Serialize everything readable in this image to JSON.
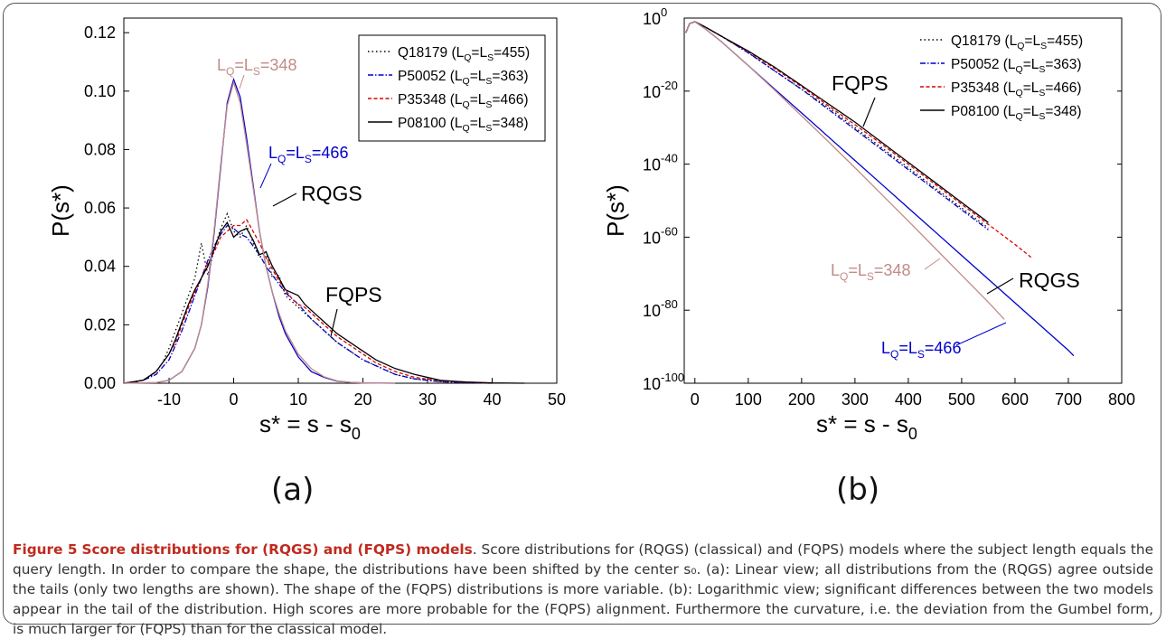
{
  "panels": [
    {
      "label": "(a)"
    },
    {
      "label": "(b)"
    }
  ],
  "caption": {
    "figure_label": "Figure 5",
    "title": "Score distributions for (RQGS) and (FQPS) models",
    "body": ". Score distributions for (RQGS) (classical) and (FQPS) models where the subject length equals the query length. In order to compare the shape, the distributions have been shifted by the center s₀. (a): Linear view; all distributions from the (RQGS) agree outside the tails (only two lengths are shown). The shape of the (FQPS) distributions is more variable. (b): Logarithmic view; significant differences between the two models appear in the tail of the distribution. High scores are more probable for the (FQPS) alignment. Furthermore the curvature, i.e. the deviation from the Gumbel form, is much larger for (FQPS) than for the classical model."
  },
  "chart_data": [
    {
      "type": "line",
      "xlabel": "s* = s - s",
      "xlabel_sub": "0",
      "ylabel": "P(s*)",
      "xlim": [
        -17,
        50
      ],
      "ylim": [
        0,
        0.125
      ],
      "xticks": [
        -10,
        0,
        10,
        20,
        30,
        40,
        50
      ],
      "xtick_labels": [
        "-10",
        "0",
        "10",
        "20",
        "30",
        "40",
        "50"
      ],
      "yticks": [
        0,
        0.02,
        0.04,
        0.06,
        0.08,
        0.1,
        0.12
      ],
      "ytick_labels": [
        "0.00",
        "0.02",
        "0.04",
        "0.06",
        "0.08",
        "0.10",
        "0.12"
      ],
      "legend_position": "top-right",
      "legend": [
        {
          "id": "Q18179",
          "L": "455",
          "color": "#000000",
          "dash": "1.5 3"
        },
        {
          "id": "P50052",
          "L": "363",
          "color": "#0000cc",
          "dash": "6 2 1.5 2"
        },
        {
          "id": "P35348",
          "L": "466",
          "color": "#dd0000",
          "dash": "4 2.5"
        },
        {
          "id": "P08100",
          "L": "348",
          "color": "#000000",
          "dash": ""
        }
      ],
      "series": [
        {
          "color": "#000000",
          "dash": "1.5 3",
          "x": [
            -17,
            -15,
            -13,
            -12,
            -11,
            -10,
            -9,
            -8,
            -7,
            -6,
            -5,
            -4,
            -3,
            -2,
            -1,
            0,
            1,
            2,
            3,
            4,
            5,
            6,
            7,
            8,
            9,
            10,
            12,
            14,
            16,
            18,
            20,
            22,
            25,
            28,
            32,
            36,
            40
          ],
          "y": [
            0,
            0.0005,
            0.002,
            0.004,
            0.007,
            0.012,
            0.018,
            0.024,
            0.03,
            0.036,
            0.048,
            0.037,
            0.046,
            0.053,
            0.058,
            0.052,
            0.05,
            0.054,
            0.048,
            0.043,
            0.045,
            0.036,
            0.037,
            0.03,
            0.028,
            0.026,
            0.022,
            0.018,
            0.014,
            0.011,
            0.008,
            0.006,
            0.003,
            0.0015,
            0.0005,
            0.0002,
            0
          ]
        },
        {
          "color": "#0000cc",
          "dash": "6 2 1.5 2",
          "x": [
            -17,
            -14,
            -12,
            -10,
            -9,
            -8,
            -7,
            -6,
            -5,
            -4,
            -3,
            -2,
            -1,
            0,
            1,
            2,
            3,
            4,
            5,
            6,
            7,
            8,
            9,
            10,
            12,
            14,
            16,
            18,
            20,
            22,
            25,
            28,
            32,
            36,
            40
          ],
          "y": [
            0,
            0.001,
            0.003,
            0.008,
            0.013,
            0.018,
            0.024,
            0.03,
            0.036,
            0.042,
            0.047,
            0.051,
            0.054,
            0.053,
            0.051,
            0.05,
            0.047,
            0.044,
            0.04,
            0.037,
            0.034,
            0.031,
            0.029,
            0.027,
            0.022,
            0.018,
            0.014,
            0.011,
            0.008,
            0.006,
            0.003,
            0.0015,
            0.0005,
            0.0002,
            0
          ]
        },
        {
          "color": "#dd0000",
          "dash": "4 2.5",
          "x": [
            -17,
            -14,
            -12,
            -10,
            -9,
            -8,
            -7,
            -6,
            -5,
            -4,
            -3,
            -2,
            -1,
            0,
            1,
            2,
            3,
            4,
            5,
            6,
            7,
            8,
            9,
            10,
            11,
            12,
            14,
            16,
            18,
            20,
            22,
            25,
            28,
            32,
            36,
            40
          ],
          "y": [
            0,
            0.001,
            0.004,
            0.01,
            0.014,
            0.02,
            0.026,
            0.031,
            0.036,
            0.041,
            0.045,
            0.05,
            0.052,
            0.054,
            0.054,
            0.056,
            0.052,
            0.048,
            0.043,
            0.039,
            0.035,
            0.032,
            0.029,
            0.027,
            0.026,
            0.024,
            0.02,
            0.016,
            0.013,
            0.01,
            0.007,
            0.004,
            0.002,
            0.0008,
            0.0003,
            0
          ]
        },
        {
          "color": "#000000",
          "dash": "",
          "x": [
            -17,
            -14,
            -12,
            -10,
            -9,
            -8,
            -7,
            -6,
            -5,
            -4,
            -3,
            -2,
            -1,
            0,
            1,
            2,
            3,
            4,
            5,
            6,
            7,
            8,
            9,
            10,
            11,
            12,
            14,
            16,
            18,
            20,
            22,
            25,
            28,
            32,
            36,
            40,
            45
          ],
          "y": [
            0,
            0.001,
            0.004,
            0.01,
            0.015,
            0.021,
            0.027,
            0.032,
            0.036,
            0.04,
            0.046,
            0.052,
            0.055,
            0.05,
            0.052,
            0.053,
            0.049,
            0.044,
            0.045,
            0.04,
            0.036,
            0.032,
            0.031,
            0.03,
            0.027,
            0.025,
            0.021,
            0.017,
            0.014,
            0.011,
            0.008,
            0.005,
            0.003,
            0.001,
            0.0004,
            0.0001,
            0
          ]
        },
        {
          "color": "#0000cc",
          "dash": "",
          "x": [
            -17,
            -12,
            -10,
            -8,
            -6,
            -5,
            -4,
            -3,
            -2,
            -1,
            0,
            1,
            2,
            3,
            4,
            5,
            6,
            7,
            8,
            10,
            12,
            14,
            16,
            18,
            20,
            25
          ],
          "y": [
            0,
            0.0002,
            0.001,
            0.004,
            0.012,
            0.02,
            0.033,
            0.052,
            0.074,
            0.096,
            0.104,
            0.098,
            0.084,
            0.068,
            0.052,
            0.04,
            0.031,
            0.023,
            0.017,
            0.009,
            0.004,
            0.002,
            0.0007,
            0.0003,
            0.0001,
            0
          ]
        },
        {
          "color": "#c28b86",
          "dash": "",
          "x": [
            -17,
            -12,
            -10,
            -8,
            -6,
            -5,
            -4,
            -3,
            -2,
            -1,
            0,
            1,
            2,
            3,
            4,
            5,
            6,
            7,
            8,
            10,
            12,
            14,
            16,
            18,
            20,
            25
          ],
          "y": [
            0,
            0.0002,
            0.001,
            0.004,
            0.012,
            0.02,
            0.034,
            0.053,
            0.075,
            0.095,
            0.103,
            0.096,
            0.082,
            0.067,
            0.052,
            0.04,
            0.031,
            0.024,
            0.018,
            0.01,
            0.005,
            0.0022,
            0.0008,
            0.0003,
            0.0001,
            0
          ]
        }
      ],
      "annotations": [
        {
          "text": "L",
          "sub1": "Q",
          "mid": "=L",
          "sub2": "S",
          "end": "=348",
          "color": "#c28b86"
        },
        {
          "text": "L",
          "sub1": "Q",
          "mid": "=L",
          "sub2": "S",
          "end": "=466",
          "color": "#0000cc"
        },
        {
          "text": "RQGS",
          "color": "#000000"
        },
        {
          "text": "FQPS",
          "color": "#000000"
        }
      ]
    },
    {
      "type": "line",
      "xlabel": "s* = s - s",
      "xlabel_sub": "0",
      "ylabel": "P(s*)",
      "y_scale": "log",
      "xlim": [
        -20,
        800
      ],
      "ylim_exp": [
        -100,
        0
      ],
      "xticks": [
        0,
        100,
        200,
        300,
        400,
        500,
        600,
        700,
        800
      ],
      "xtick_labels": [
        "0",
        "100",
        "200",
        "300",
        "400",
        "500",
        "600",
        "700",
        "800"
      ],
      "yticks_exp": [
        0,
        -20,
        -40,
        -60,
        -80,
        -100
      ],
      "ytick_labels": [
        "10",
        "10",
        "10",
        "10",
        "10",
        "10"
      ],
      "ytick_exponents": [
        "0",
        "-20",
        "-40",
        "-60",
        "-80",
        "-100"
      ],
      "legend_position": "top-right",
      "legend": [
        {
          "id": "Q18179",
          "L": "455",
          "color": "#000000",
          "dash": "1.5 3"
        },
        {
          "id": "P50052",
          "L": "363",
          "color": "#0000cc",
          "dash": "6 2 1.5 2"
        },
        {
          "id": "P35348",
          "L": "466",
          "color": "#dd0000",
          "dash": "4 2.5"
        },
        {
          "id": "P08100",
          "L": "348",
          "color": "#000000",
          "dash": ""
        }
      ],
      "series": [
        {
          "color": "#000000",
          "dash": "1.5 3",
          "x": [
            -17,
            -10,
            0,
            20,
            50,
            100,
            150,
            200,
            250,
            300,
            350,
            400,
            450,
            500,
            550
          ],
          "y": [
            -4,
            -1.5,
            -1,
            -2.5,
            -5,
            -9.5,
            -14.5,
            -19.5,
            -24.5,
            -30,
            -35.5,
            -41,
            -46.5,
            -52,
            -57.5
          ]
        },
        {
          "color": "#0000cc",
          "dash": "6 2 1.5 2",
          "x": [
            -17,
            -10,
            0,
            20,
            50,
            100,
            150,
            200,
            250,
            300,
            350,
            400,
            450,
            500,
            550
          ],
          "y": [
            -4,
            -1.5,
            -1,
            -2.5,
            -5,
            -9.5,
            -14.5,
            -19.5,
            -25,
            -30.5,
            -36,
            -41.5,
            -47,
            -52.5,
            -58
          ]
        },
        {
          "color": "#dd0000",
          "dash": "4 2.5",
          "x": [
            -17,
            -10,
            0,
            20,
            50,
            100,
            150,
            200,
            250,
            300,
            350,
            400,
            450,
            500,
            550,
            600,
            630
          ],
          "y": [
            -4,
            -1.5,
            -1,
            -2.5,
            -5,
            -9.2,
            -13.8,
            -18.8,
            -24,
            -29.2,
            -34.5,
            -40,
            -45.5,
            -51,
            -56.5,
            -62,
            -65.5
          ]
        },
        {
          "color": "#000000",
          "dash": "",
          "x": [
            -17,
            -10,
            0,
            20,
            50,
            100,
            150,
            200,
            250,
            300,
            350,
            400,
            450,
            500,
            550
          ],
          "y": [
            -4,
            -1.5,
            -1,
            -2.5,
            -5,
            -9,
            -13.5,
            -18.5,
            -23.5,
            -28.5,
            -34,
            -39.5,
            -45,
            -50.5,
            -56
          ]
        },
        {
          "color": "#0000cc",
          "dash": "",
          "x": [
            -17,
            -10,
            0,
            20,
            50,
            100,
            150,
            200,
            250,
            300,
            350,
            400,
            450,
            500,
            550,
            600,
            650,
            700,
            710
          ],
          "y": [
            -4,
            -1.5,
            -1,
            -3,
            -6.5,
            -13,
            -19.5,
            -26,
            -32.5,
            -39,
            -45.5,
            -52,
            -58.5,
            -65,
            -71.5,
            -78,
            -84.5,
            -91,
            -92.5
          ]
        },
        {
          "color": "#c28b86",
          "dash": "",
          "x": [
            -17,
            -10,
            0,
            20,
            50,
            100,
            150,
            200,
            250,
            300,
            350,
            400,
            450,
            500,
            550,
            580
          ],
          "y": [
            -4,
            -1.5,
            -1,
            -3,
            -6.5,
            -13,
            -19.8,
            -26.8,
            -33.8,
            -41,
            -48.3,
            -55.6,
            -63,
            -70.4,
            -77.8,
            -82.5
          ]
        }
      ],
      "annotations": [
        {
          "text": "FQPS",
          "color": "#000000"
        },
        {
          "text": "L",
          "sub1": "Q",
          "mid": "=L",
          "sub2": "S",
          "end": "=348",
          "color": "#c28b86"
        },
        {
          "text": "RQGS",
          "color": "#000000"
        },
        {
          "text": "L",
          "sub1": "Q",
          "mid": "=L",
          "sub2": "S",
          "end": "=466",
          "color": "#0000cc"
        }
      ]
    }
  ]
}
